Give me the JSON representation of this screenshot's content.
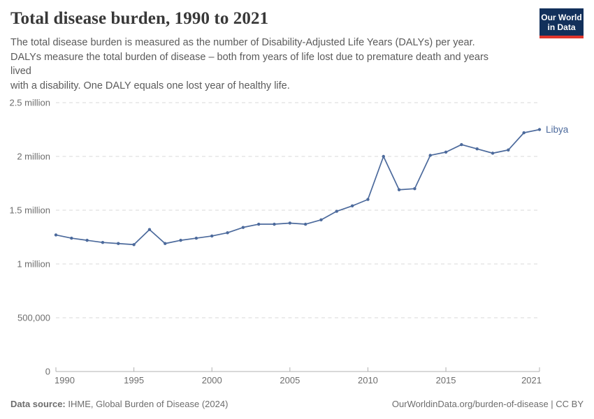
{
  "header": {
    "title": "Total disease burden, 1990 to 2021",
    "subtitle_lines": [
      "The total disease burden is measured as the number of Disability-Adjusted Life Years (DALYs) per year.",
      "DALYs measure the total burden of disease – both from years of life lost due to premature death and years",
      "lived",
      "with a disability. One DALY equals one lost year of healthy life."
    ],
    "logo": {
      "line1": "Our World",
      "line2": "in Data",
      "bg_color": "#12305b",
      "stripe_color": "#e0352c"
    }
  },
  "chart_data": {
    "type": "line",
    "title": "Total disease burden, 1990 to 2021",
    "entity_end_label": "Libya",
    "x": [
      1990,
      1991,
      1992,
      1993,
      1994,
      1995,
      1996,
      1997,
      1998,
      1999,
      2000,
      2001,
      2002,
      2003,
      2004,
      2005,
      2006,
      2007,
      2008,
      2009,
      2010,
      2011,
      2012,
      2013,
      2014,
      2015,
      2016,
      2017,
      2018,
      2019,
      2020,
      2021
    ],
    "series": [
      {
        "name": "Libya",
        "color": "#4c6a9c",
        "values": [
          1270000,
          1240000,
          1220000,
          1200000,
          1190000,
          1180000,
          1320000,
          1190000,
          1220000,
          1240000,
          1260000,
          1290000,
          1340000,
          1370000,
          1370000,
          1380000,
          1370000,
          1410000,
          1490000,
          1540000,
          1600000,
          2000000,
          1690000,
          1700000,
          2010000,
          2040000,
          2110000,
          2070000,
          2030000,
          2060000,
          2220000,
          2250000
        ]
      }
    ],
    "xlim": [
      1990,
      2021
    ],
    "ylim": [
      0,
      2500000
    ],
    "x_ticks": [
      1990,
      1995,
      2000,
      2005,
      2010,
      2015,
      2021
    ],
    "y_ticks": [
      {
        "value": 0,
        "label": "0"
      },
      {
        "value": 500000,
        "label": "500,000"
      },
      {
        "value": 1000000,
        "label": "1 million"
      },
      {
        "value": 1500000,
        "label": "1.5 million"
      },
      {
        "value": 2000000,
        "label": "2 million"
      },
      {
        "value": 2500000,
        "label": "2.5 million"
      }
    ],
    "grid": "horizontal-dashed",
    "grid_color": "#dadada",
    "axis_color": "#b0b0b0",
    "legend_position": "end-of-line"
  },
  "footer": {
    "source_label": "Data source:",
    "source_value": " IHME, Global Burden of Disease (2024)",
    "credit": "OurWorldinData.org/burden-of-disease | CC BY"
  }
}
